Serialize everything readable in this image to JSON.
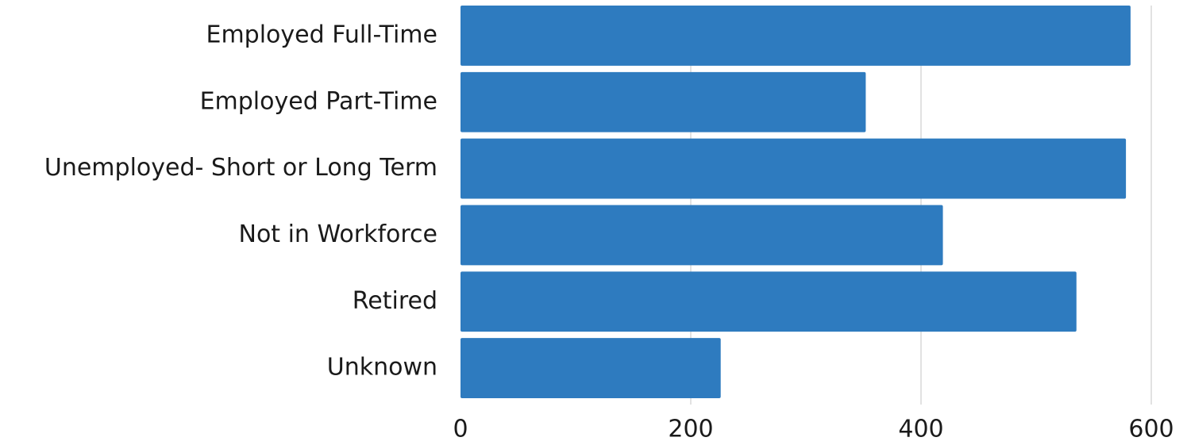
{
  "chart_data": {
    "type": "bar",
    "orientation": "horizontal",
    "title": "",
    "xlabel": "",
    "ylabel": "",
    "categories": [
      "Employed Full-Time",
      "Employed Part-Time",
      "Unemployed- Short or Long Term",
      "Not in Workforce",
      "Retired",
      "Unknown"
    ],
    "values": [
      582,
      352,
      578,
      419,
      535,
      226
    ],
    "xlim": [
      0,
      600
    ],
    "xticks": [
      "0",
      "200",
      "400",
      "600"
    ],
    "grid": "vertical",
    "legend": "none",
    "colors": {
      "bar": "#2e7bbf",
      "grid": "#d9d9d9",
      "text": "#1a1a1a"
    }
  }
}
